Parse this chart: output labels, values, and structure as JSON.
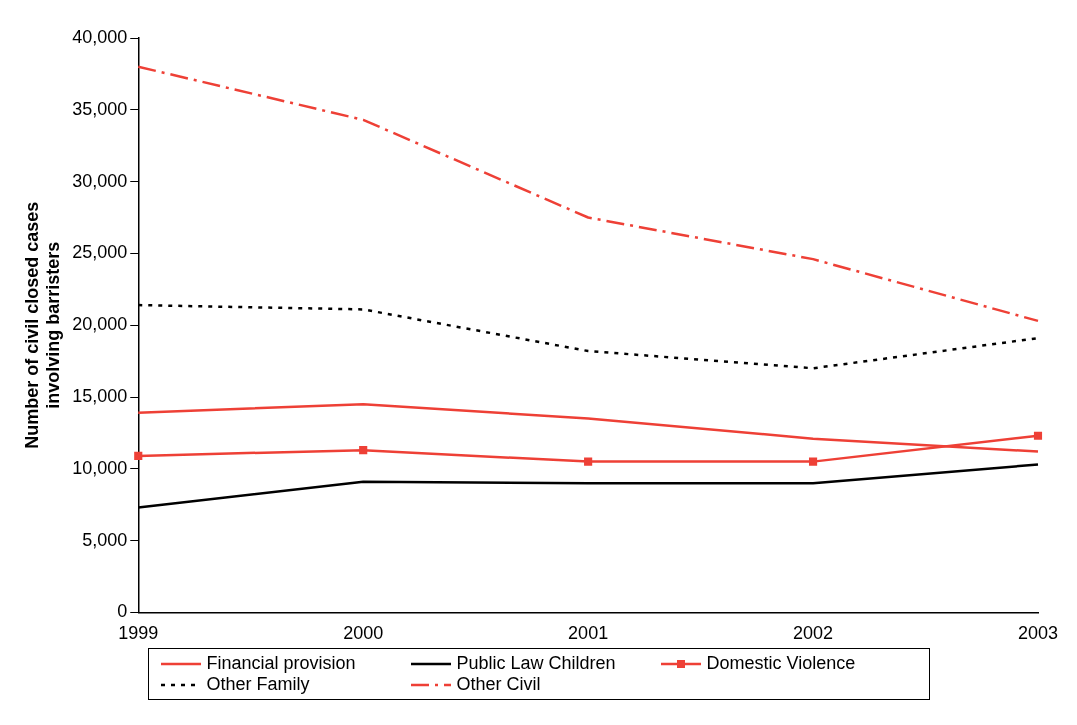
{
  "chart_data": {
    "type": "line",
    "ylabel": "Number of civil closed cases\ninvolving barristers",
    "categories": [
      "1999",
      "2000",
      "2001",
      "2002",
      "2003"
    ],
    "ylim": [
      0,
      40000
    ],
    "yticks": [
      0,
      {
        "value": 5000,
        "label": "5,000"
      },
      {
        "value": 10000,
        "label": "10,000"
      },
      {
        "value": 15000,
        "label": "15,000"
      },
      {
        "value": 20000,
        "label": "20,000"
      },
      {
        "value": 25000,
        "label": "25,000"
      },
      {
        "value": 30000,
        "label": "30,000"
      },
      {
        "value": 35000,
        "label": "35,000"
      },
      {
        "value": 40000,
        "label": "40,000"
      }
    ],
    "grid": false,
    "legend": "bottom",
    "series": [
      {
        "name": "Financial provision",
        "color": "#ee4036",
        "values": [
          13900,
          14500,
          13500,
          12100,
          11200
        ],
        "marker": "none",
        "line_style": "solid"
      },
      {
        "name": "Public Law Children",
        "color": "#000000",
        "values": [
          7300,
          9100,
          9000,
          9000,
          10300
        ],
        "marker": "none",
        "line_style": "solid"
      },
      {
        "name": "Domestic Violence",
        "color": "#ee4036",
        "values": [
          10900,
          11300,
          10500,
          10500,
          12300
        ],
        "marker": "square",
        "line_style": "solid"
      },
      {
        "name": "Other Family",
        "color": "#000000",
        "values": [
          21400,
          21100,
          18200,
          17000,
          19100
        ],
        "marker": "none",
        "line_style": "dotted"
      },
      {
        "name": "Other Civil",
        "color": "#ee4036",
        "values": [
          38000,
          34300,
          27500,
          24600,
          20300
        ],
        "marker": "none",
        "line_style": "dashdot"
      }
    ]
  }
}
